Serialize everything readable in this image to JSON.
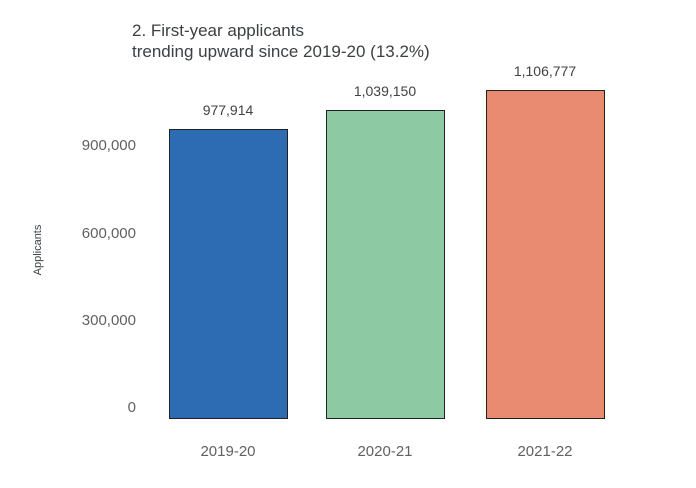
{
  "chart_data": {
    "type": "bar",
    "title": "2. First-year applicants trending upward since 2019-20 (13.2%)",
    "title_lines": [
      "2. First-year applicants",
      "trending upward since 2019-20 (13.2%)"
    ],
    "ylabel": "Applicants",
    "xlabel": "",
    "categories": [
      "2019-20",
      "2020-21",
      "2021-22"
    ],
    "values": [
      977914,
      1039150,
      1106777
    ],
    "value_labels": [
      "977,914",
      "1,039,150",
      "1,106,777"
    ],
    "y_ticks": [
      {
        "value": 0,
        "label": "0"
      },
      {
        "value": 300000,
        "label": "300,000"
      },
      {
        "value": 600000,
        "label": "600,000"
      },
      {
        "value": 900000,
        "label": "900,000"
      }
    ],
    "ylim": [
      0,
      1130000
    ],
    "grid": false,
    "legend": null,
    "colors": {
      "bars": [
        "#2d6bb3",
        "#8dcaa4",
        "#e98b71"
      ],
      "bar_border": "#212121",
      "title_text": "#3c4043",
      "value_text": "#424242",
      "tick_text": "#616161",
      "background": "#ffffff"
    }
  }
}
